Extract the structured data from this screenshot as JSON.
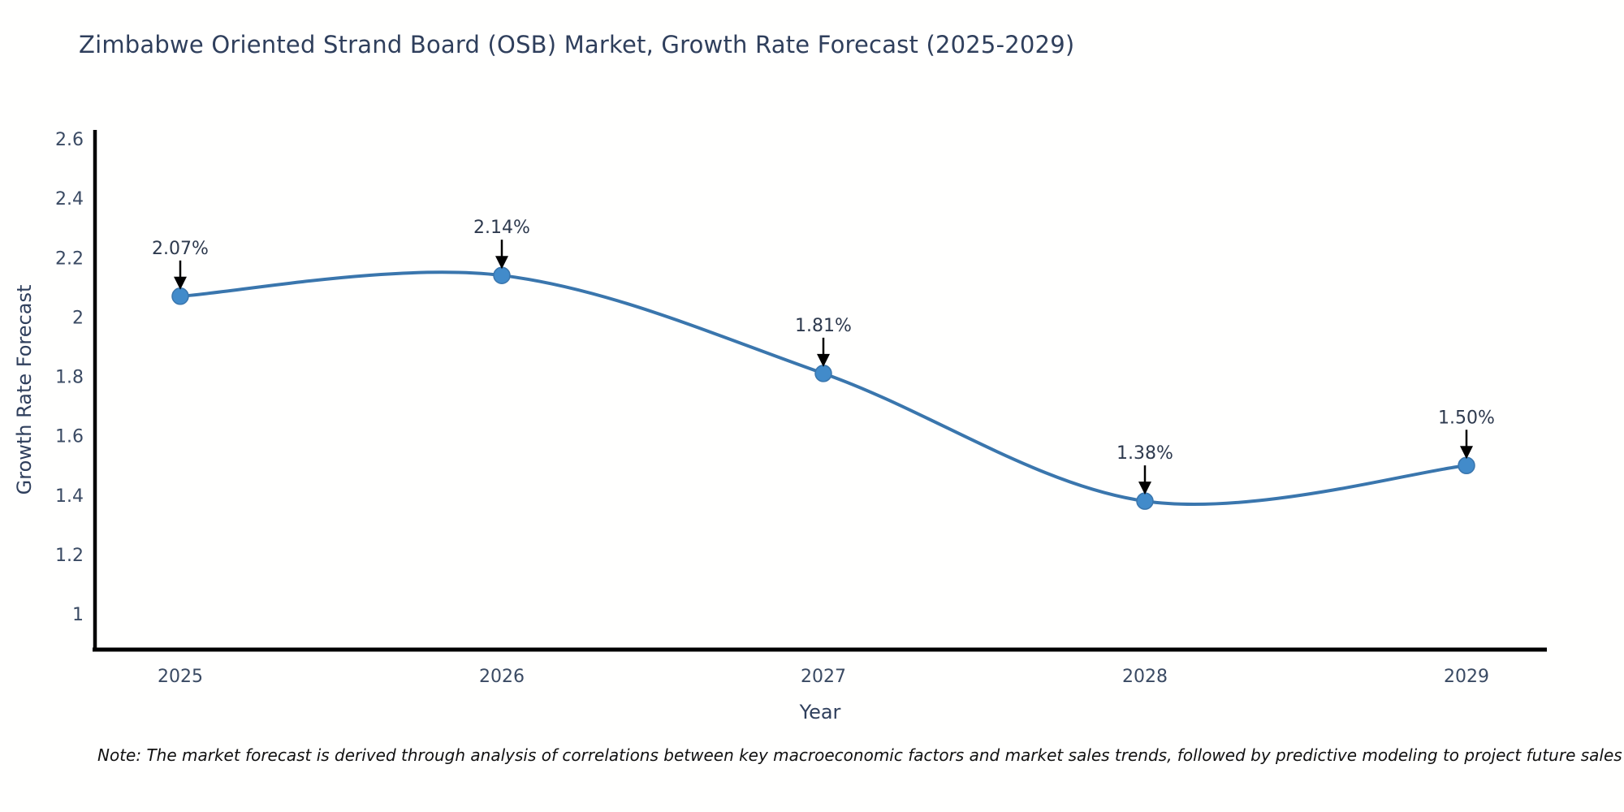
{
  "chart_data": {
    "type": "line",
    "title": "Zimbabwe Oriented Strand Board (OSB) Market, Growth Rate Forecast (2025-2029)",
    "xlabel": "Year",
    "ylabel": "Growth Rate Forecast",
    "categories": [
      "2025",
      "2026",
      "2027",
      "2028",
      "2029"
    ],
    "series": [
      {
        "name": "Growth Rate Forecast",
        "values": [
          2.07,
          2.14,
          1.81,
          1.38,
          1.5
        ],
        "point_labels": [
          "2.07%",
          "2.14%",
          "1.81%",
          "1.38%",
          "1.50%"
        ]
      }
    ],
    "line_shape": "spline",
    "markers": true,
    "grid": false,
    "legend": "none",
    "ylim": [
      0.88,
      2.63
    ],
    "yticks": [
      1,
      1.2,
      1.4,
      1.6,
      1.8,
      2,
      2.2,
      2.4,
      2.6
    ],
    "ytick_labels": [
      "1",
      "1.2",
      "1.4",
      "1.6",
      "1.8",
      "2",
      "2.2",
      "2.4",
      "2.6"
    ],
    "colors": {
      "line": "#3a76ad",
      "marker": "#428bca",
      "axis_line": "#000000",
      "tick_text": "#3a4a63",
      "axis_title_text": "#2f3f5c",
      "annotation_text": "#2e3a4e",
      "arrow": "#000000",
      "background": "#fffffe"
    }
  },
  "note": {
    "text": "Note: The market forecast is derived through analysis of correlations between key macroeconomic factors and market sales trends, followed by predictive modeling to project future sales"
  }
}
